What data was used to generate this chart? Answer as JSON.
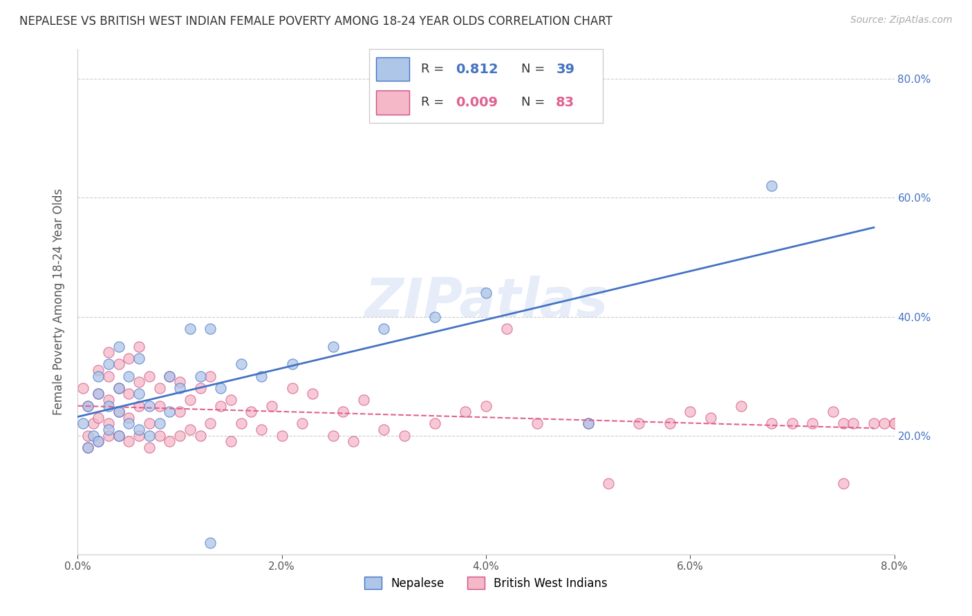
{
  "title": "NEPALESE VS BRITISH WEST INDIAN FEMALE POVERTY AMONG 18-24 YEAR OLDS CORRELATION CHART",
  "source": "Source: ZipAtlas.com",
  "ylabel": "Female Poverty Among 18-24 Year Olds",
  "xlim": [
    0.0,
    0.08
  ],
  "ylim": [
    0.0,
    0.85
  ],
  "xticks": [
    0.0,
    0.02,
    0.04,
    0.06,
    0.08
  ],
  "xticklabels": [
    "0.0%",
    "2.0%",
    "4.0%",
    "6.0%",
    "8.0%"
  ],
  "yticks": [
    0.0,
    0.2,
    0.4,
    0.6,
    0.8
  ],
  "yticklabels_right": [
    "",
    "20.0%",
    "40.0%",
    "60.0%",
    "80.0%"
  ],
  "nepalese_R": "0.812",
  "nepalese_N": "39",
  "bwi_R": "0.009",
  "bwi_N": "83",
  "nepalese_color": "#aec6e8",
  "nepalese_edge_color": "#4472c4",
  "bwi_color": "#f4b8c8",
  "bwi_edge_color": "#d05080",
  "trend_nepalese_color": "#4472c4",
  "trend_bwi_color": "#e06090",
  "watermark": "ZIPatlas",
  "background_color": "#ffffff",
  "legend_R_color": "#4472c4",
  "legend_bwi_R_color": "#e06090",
  "nepalese_x": [
    0.0005,
    0.001,
    0.001,
    0.0015,
    0.002,
    0.002,
    0.002,
    0.003,
    0.003,
    0.003,
    0.004,
    0.004,
    0.004,
    0.004,
    0.005,
    0.005,
    0.006,
    0.006,
    0.006,
    0.007,
    0.007,
    0.008,
    0.009,
    0.009,
    0.01,
    0.011,
    0.012,
    0.013,
    0.014,
    0.016,
    0.018,
    0.021,
    0.025,
    0.03,
    0.035,
    0.04,
    0.05,
    0.068,
    0.013
  ],
  "nepalese_y": [
    0.22,
    0.18,
    0.25,
    0.2,
    0.19,
    0.27,
    0.3,
    0.21,
    0.25,
    0.32,
    0.2,
    0.24,
    0.28,
    0.35,
    0.22,
    0.3,
    0.21,
    0.27,
    0.33,
    0.2,
    0.25,
    0.22,
    0.24,
    0.3,
    0.28,
    0.38,
    0.3,
    0.38,
    0.28,
    0.32,
    0.3,
    0.32,
    0.35,
    0.38,
    0.4,
    0.44,
    0.22,
    0.62,
    0.02
  ],
  "bwi_x": [
    0.0005,
    0.001,
    0.001,
    0.001,
    0.0015,
    0.002,
    0.002,
    0.002,
    0.002,
    0.003,
    0.003,
    0.003,
    0.003,
    0.003,
    0.004,
    0.004,
    0.004,
    0.004,
    0.005,
    0.005,
    0.005,
    0.005,
    0.006,
    0.006,
    0.006,
    0.006,
    0.007,
    0.007,
    0.007,
    0.008,
    0.008,
    0.008,
    0.009,
    0.009,
    0.01,
    0.01,
    0.01,
    0.011,
    0.011,
    0.012,
    0.012,
    0.013,
    0.013,
    0.014,
    0.015,
    0.015,
    0.016,
    0.017,
    0.018,
    0.019,
    0.02,
    0.021,
    0.022,
    0.023,
    0.025,
    0.026,
    0.027,
    0.028,
    0.03,
    0.032,
    0.035,
    0.038,
    0.04,
    0.042,
    0.045,
    0.05,
    0.052,
    0.055,
    0.058,
    0.06,
    0.062,
    0.065,
    0.068,
    0.07,
    0.072,
    0.074,
    0.075,
    0.076,
    0.078,
    0.079,
    0.08,
    0.08,
    0.075
  ],
  "bwi_y": [
    0.28,
    0.25,
    0.2,
    0.18,
    0.22,
    0.27,
    0.23,
    0.19,
    0.31,
    0.2,
    0.22,
    0.26,
    0.3,
    0.34,
    0.2,
    0.24,
    0.28,
    0.32,
    0.19,
    0.23,
    0.27,
    0.33,
    0.2,
    0.25,
    0.29,
    0.35,
    0.18,
    0.22,
    0.3,
    0.2,
    0.25,
    0.28,
    0.19,
    0.3,
    0.2,
    0.24,
    0.29,
    0.21,
    0.26,
    0.2,
    0.28,
    0.22,
    0.3,
    0.25,
    0.19,
    0.26,
    0.22,
    0.24,
    0.21,
    0.25,
    0.2,
    0.28,
    0.22,
    0.27,
    0.2,
    0.24,
    0.19,
    0.26,
    0.21,
    0.2,
    0.22,
    0.24,
    0.25,
    0.38,
    0.22,
    0.22,
    0.12,
    0.22,
    0.22,
    0.24,
    0.23,
    0.25,
    0.22,
    0.22,
    0.22,
    0.24,
    0.22,
    0.22,
    0.22,
    0.22,
    0.22,
    0.22,
    0.12
  ]
}
